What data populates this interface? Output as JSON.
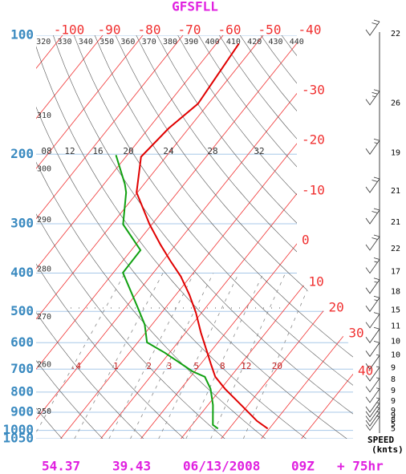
{
  "chart_data": {
    "type": "skewt",
    "title": "GFSFLL",
    "log_y": true,
    "ylim": [
      1050,
      100
    ],
    "yticks": [
      100,
      200,
      300,
      400,
      500,
      600,
      700,
      800,
      900,
      1000,
      1050
    ],
    "xticks": [
      -100,
      -90,
      -80,
      -70,
      -60,
      -50,
      -40,
      -30,
      -20,
      -10,
      0,
      10,
      20,
      30,
      40
    ],
    "theta": [
      250,
      260,
      270,
      280,
      290,
      300,
      310,
      320,
      330,
      340,
      350,
      360,
      370,
      380,
      390,
      400,
      410,
      420,
      430,
      440
    ],
    "mixing_ratio": [
      {
        "value": 0.4,
        "label": ".4"
      },
      1,
      2,
      3,
      5,
      8,
      12,
      20
    ],
    "upper_labels": [
      "08",
      "12",
      "16",
      "20",
      "24",
      "28",
      "32"
    ],
    "series": [
      {
        "color": "#e00000",
        "pressure": [
          990,
          947,
          862,
          785,
          732,
          683,
          636,
          566,
          504,
          454,
          408,
          372,
          339,
          301,
          250,
          203,
          172,
          149,
          105
        ],
        "values": [
          29.6,
          25.4,
          18.2,
          11.0,
          6.2,
          2.8,
          -0.6,
          -6.2,
          -11.4,
          -16.6,
          -22.4,
          -28.2,
          -33.8,
          -40.6,
          -50.2,
          -56.2,
          -55.0,
          -52.6,
          -54.4
        ]
      },
      {
        "color": "#10a010",
        "pressure": [
          990,
          969,
          862,
          785,
          732,
          709,
          636,
          599,
          540,
          481,
          399,
          350,
          301,
          250,
          238,
          201
        ],
        "values": [
          17.2,
          15.2,
          11.2,
          7.4,
          3.6,
          -0.6,
          -11.2,
          -17.7,
          -21.8,
          -27.8,
          -37.6,
          -37.7,
          -47.2,
          -52.8,
          -54.8,
          -62.8
        ]
      }
    ],
    "wind": {
      "pressure": [
        100,
        150,
        200,
        250,
        300,
        350,
        400,
        450,
        500,
        550,
        600,
        650,
        700,
        750,
        800,
        850,
        900,
        925,
        950,
        975,
        1000
      ],
      "speed": [
        22,
        26,
        19,
        21,
        21,
        22,
        17,
        18,
        15,
        11,
        10,
        10,
        9,
        8,
        9,
        9,
        9,
        9,
        8,
        5,
        5
      ],
      "label": [
        "SPEED",
        "(knts)"
      ]
    },
    "footer": [
      "54.37",
      "39.43",
      "06/13/2008",
      "09Z",
      "+ 75hr"
    ]
  }
}
